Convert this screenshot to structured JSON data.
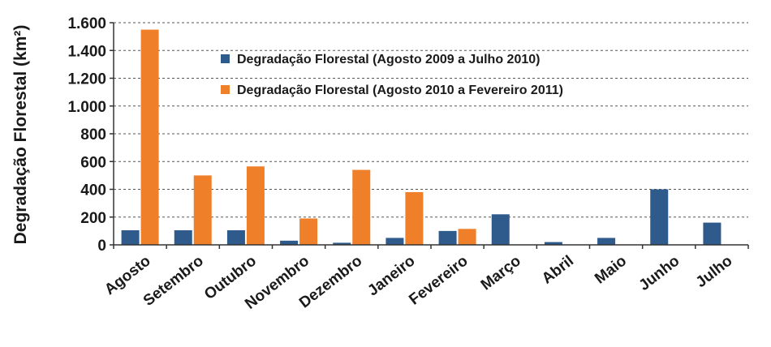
{
  "chart_data": {
    "type": "bar",
    "ylabel": "Degradação Florestal (km²)",
    "ylim": [
      0,
      1600
    ],
    "yticks": [
      0,
      200,
      400,
      600,
      800,
      1000,
      1200,
      1400,
      1600
    ],
    "ytick_labels": [
      "0",
      "200",
      "400",
      "600",
      "800",
      "1.000",
      "1.200",
      "1.400",
      "1.600"
    ],
    "grid": true,
    "legend_position": "top-center",
    "categories": [
      "Agosto",
      "Setembro",
      "Outubro",
      "Novembro",
      "Dezembro",
      "Janeiro",
      "Fevereiro",
      "Março",
      "Abril",
      "Maio",
      "Junho",
      "Julho"
    ],
    "series": [
      {
        "name": "Degradação Florestal (Agosto 2009 a Julho 2010)",
        "color": "#2e5a8c",
        "values": [
          105,
          105,
          105,
          30,
          15,
          50,
          100,
          220,
          20,
          50,
          400,
          160
        ]
      },
      {
        "name": "Degradação Florestal (Agosto 2010 a Fevereiro 2011)",
        "color": "#f07f2a",
        "values": [
          1550,
          500,
          565,
          190,
          540,
          380,
          115,
          null,
          null,
          null,
          null,
          null
        ]
      }
    ]
  }
}
